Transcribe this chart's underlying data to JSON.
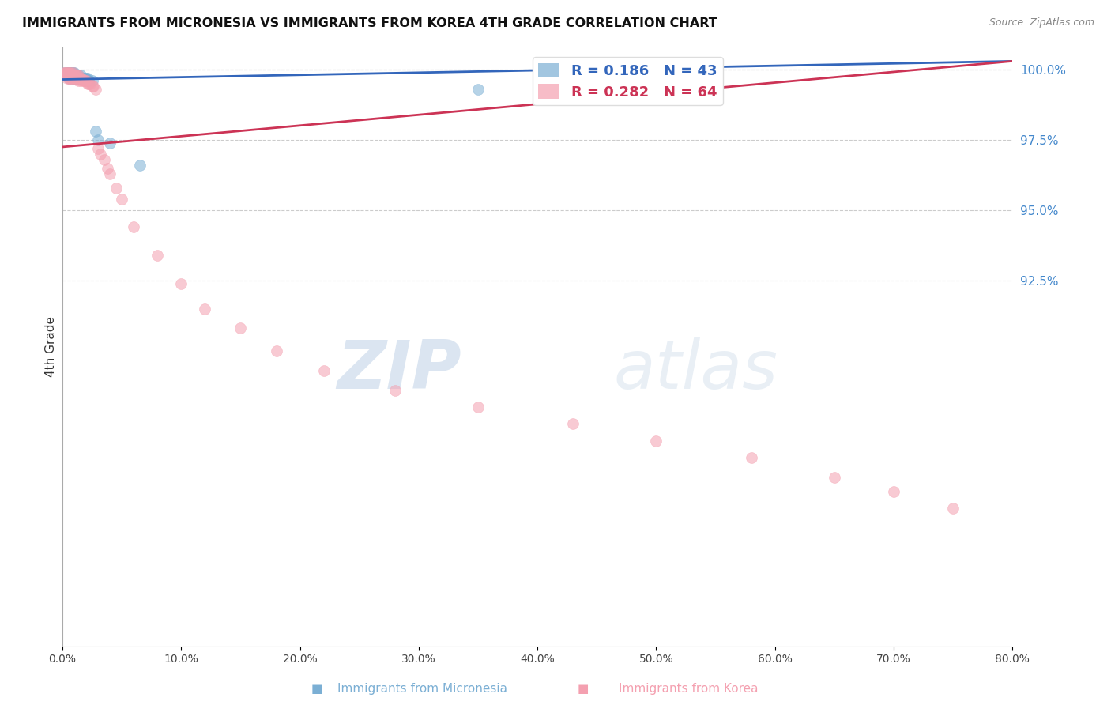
{
  "title": "IMMIGRANTS FROM MICRONESIA VS IMMIGRANTS FROM KOREA 4TH GRADE CORRELATION CHART",
  "source": "Source: ZipAtlas.com",
  "ylabel": "4th Grade",
  "right_ytick_labels": [
    "100.0%",
    "97.5%",
    "95.0%",
    "92.5%"
  ],
  "right_ytick_values": [
    1.0,
    0.975,
    0.95,
    0.925
  ],
  "ymin": 0.795,
  "ymax": 1.008,
  "xmin": 0.0,
  "xmax": 0.8,
  "legend_blue_R": "0.186",
  "legend_blue_N": "43",
  "legend_pink_R": "0.282",
  "legend_pink_N": "64",
  "blue_color": "#7BAFD4",
  "pink_color": "#F4A0B0",
  "blue_line_color": "#3366BB",
  "pink_line_color": "#CC3355",
  "watermark_color": "#D0DFF0",
  "watermark_text": "ZIPatlas",
  "micronesia_x": [
    0.001,
    0.002,
    0.003,
    0.003,
    0.004,
    0.004,
    0.005,
    0.005,
    0.005,
    0.006,
    0.006,
    0.007,
    0.007,
    0.008,
    0.008,
    0.009,
    0.009,
    0.009,
    0.01,
    0.01,
    0.01,
    0.011,
    0.011,
    0.012,
    0.012,
    0.013,
    0.013,
    0.014,
    0.015,
    0.015,
    0.016,
    0.017,
    0.018,
    0.019,
    0.02,
    0.021,
    0.022,
    0.025,
    0.028,
    0.03,
    0.04,
    0.065,
    0.35
  ],
  "micronesia_y": [
    0.999,
    0.998,
    0.999,
    0.998,
    0.999,
    0.998,
    0.999,
    0.998,
    0.997,
    0.999,
    0.998,
    0.999,
    0.998,
    0.999,
    0.997,
    0.999,
    0.998,
    0.997,
    0.999,
    0.998,
    0.997,
    0.998,
    0.997,
    0.998,
    0.997,
    0.998,
    0.997,
    0.997,
    0.998,
    0.997,
    0.997,
    0.997,
    0.997,
    0.997,
    0.997,
    0.997,
    0.996,
    0.996,
    0.978,
    0.975,
    0.974,
    0.966,
    0.993
  ],
  "korea_x": [
    0.001,
    0.001,
    0.002,
    0.002,
    0.003,
    0.003,
    0.004,
    0.004,
    0.005,
    0.005,
    0.005,
    0.006,
    0.006,
    0.007,
    0.007,
    0.008,
    0.008,
    0.009,
    0.009,
    0.009,
    0.01,
    0.01,
    0.011,
    0.011,
    0.012,
    0.012,
    0.013,
    0.013,
    0.014,
    0.015,
    0.015,
    0.016,
    0.017,
    0.018,
    0.019,
    0.02,
    0.021,
    0.022,
    0.023,
    0.025,
    0.026,
    0.028,
    0.03,
    0.032,
    0.035,
    0.038,
    0.04,
    0.045,
    0.05,
    0.06,
    0.08,
    0.1,
    0.12,
    0.15,
    0.18,
    0.22,
    0.28,
    0.35,
    0.43,
    0.5,
    0.58,
    0.65,
    0.7,
    0.75
  ],
  "korea_y": [
    0.999,
    0.998,
    0.999,
    0.998,
    0.999,
    0.998,
    0.999,
    0.997,
    0.999,
    0.998,
    0.997,
    0.999,
    0.997,
    0.999,
    0.997,
    0.998,
    0.997,
    0.999,
    0.998,
    0.997,
    0.998,
    0.997,
    0.998,
    0.997,
    0.998,
    0.997,
    0.998,
    0.996,
    0.997,
    0.997,
    0.996,
    0.997,
    0.996,
    0.996,
    0.996,
    0.996,
    0.995,
    0.995,
    0.995,
    0.994,
    0.994,
    0.993,
    0.972,
    0.97,
    0.968,
    0.965,
    0.963,
    0.958,
    0.954,
    0.944,
    0.934,
    0.924,
    0.915,
    0.908,
    0.9,
    0.893,
    0.886,
    0.88,
    0.874,
    0.868,
    0.862,
    0.855,
    0.85,
    0.844
  ]
}
